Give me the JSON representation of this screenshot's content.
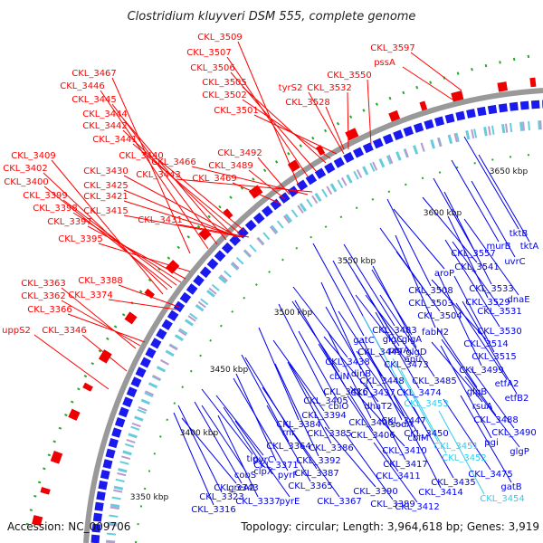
{
  "title": "Clostridium kluyveri DSM 555, complete genome",
  "footer": {
    "accession": "Accession: NC_009706",
    "summary": "Topology: circular; Length: 3,964,618 bp; Genes: 3,919"
  },
  "colors": {
    "forward": "#ff0000",
    "reverse": "#0000ee",
    "highlight": "#33ccee",
    "backbone": "#909090",
    "gc_ticks": "#22aa22"
  },
  "ticks": [
    "3350 kbp",
    "3400 kbp",
    "3450 kbp",
    "3500 kbp",
    "3550 kbp",
    "3600 kbp",
    "3650 kbp"
  ],
  "labels_forward": [
    "CKL_3509",
    "CKL_3507",
    "CKL_3506",
    "CKL_3505",
    "CKL_3502",
    "CKL_3501",
    "CKL_3597",
    "pssA",
    "CKL_3550",
    "tyrS2",
    "CKL_3532",
    "CKL_3528",
    "CKL_3467",
    "CKL_3446",
    "CKL_3445",
    "CKL_3444",
    "CKL_3442",
    "CKL_3441",
    "CKL_3440",
    "CKL_3466",
    "CKL_3443",
    "CKL_3492",
    "CKL_3489",
    "CKL_3469",
    "CKL_3409",
    "CKL_3402",
    "CKL_3400",
    "CKL_3399",
    "CKL_3398",
    "CKL_3397",
    "CKL_3395",
    "CKL_3430",
    "CKL_3425",
    "CKL_3421",
    "CKL_3415",
    "CKL_3431",
    "CKL_3363",
    "CKL_3362",
    "CKL_3366",
    "CKL_3388",
    "CKL_3374",
    "uppS2",
    "CKL_3346"
  ],
  "labels_reverse": [
    "tktB",
    "tktA",
    "murB",
    "uvrC",
    "CKL_3557",
    "CKL_3541",
    "aroP",
    "CKL_3533",
    "CKL_3508",
    "CKL_3529",
    "dnaE",
    "CKL_3503",
    "CKL_3531",
    "CKL_3504",
    "fabH2",
    "CKL_3530",
    "CKL_3483",
    "glgC",
    "pcrA",
    "glgA",
    "CKL_3514",
    "gatC",
    "CKL_3449",
    "glgD",
    "CKL_3515",
    "CKL_3438",
    "CKL_3473",
    "apu",
    "CKL_3499",
    "dinB",
    "CKL_3485",
    "etfA2",
    "cbiN",
    "CKL_3448",
    "glgB",
    "etfB2",
    "CKL_3416",
    "CKL_3437",
    "CKL_3474",
    "cbiO",
    "dhaT2",
    "rsuA",
    "CKL_3405",
    "CKL_3408",
    "sodA",
    "CKL_3488",
    "CKL_3394",
    "CKL_3447",
    "CKL_3490",
    "CKL_3384",
    "CKL_3406",
    "cbiM",
    "CKL_3450",
    "rnr",
    "CKL_3385",
    "CKL_3410",
    "pgi",
    "CKL_3364",
    "CKL_3386",
    "CKL_3417",
    "glgP",
    "tig",
    "pyrC",
    "CKL_3392",
    "CKL_3371",
    "CKL_3387",
    "CKL_3411",
    "CKL_3475",
    "cobS",
    "clpX",
    "pyrF",
    "gatB",
    "greA2",
    "CKL_3365",
    "CKL_3435",
    "CKL_3343",
    "CKL_3390",
    "CKL_3414",
    "CKL_3323",
    "CKL_3337",
    "pyrE",
    "CKL_3367",
    "CKL_3389",
    "CKL_3412",
    "CKL_3316"
  ],
  "labels_highlight": [
    "CKL_3453",
    "CKL_3451",
    "CKL_3452",
    "CKL_3454"
  ]
}
